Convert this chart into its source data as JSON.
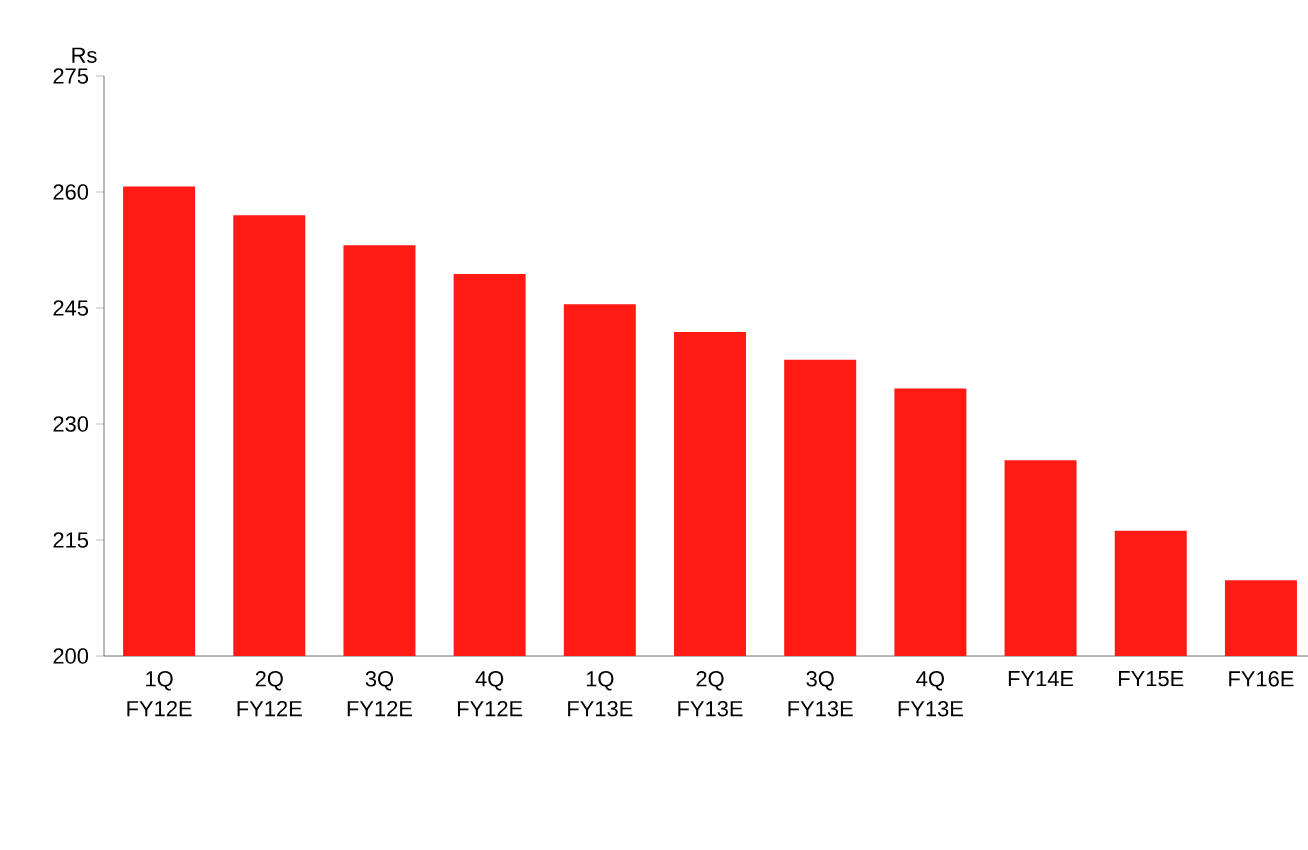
{
  "chart_data": {
    "type": "bar",
    "ylabel": "Rs",
    "categories": [
      "1Q FY12E",
      "2Q FY12E",
      "3Q FY12E",
      "4Q FY12E",
      "1Q FY13E",
      "2Q FY13E",
      "3Q FY13E",
      "4Q FY13E",
      "FY14E",
      "FY15E",
      "FY16E"
    ],
    "values": [
      260.7,
      257.0,
      253.1,
      249.4,
      245.5,
      241.9,
      238.3,
      234.6,
      225.3,
      216.2,
      209.8
    ],
    "color": "#ff1a14",
    "ylim": [
      200,
      275
    ],
    "yticks": [
      200,
      215,
      230,
      245,
      260,
      275
    ],
    "grid": false
  }
}
